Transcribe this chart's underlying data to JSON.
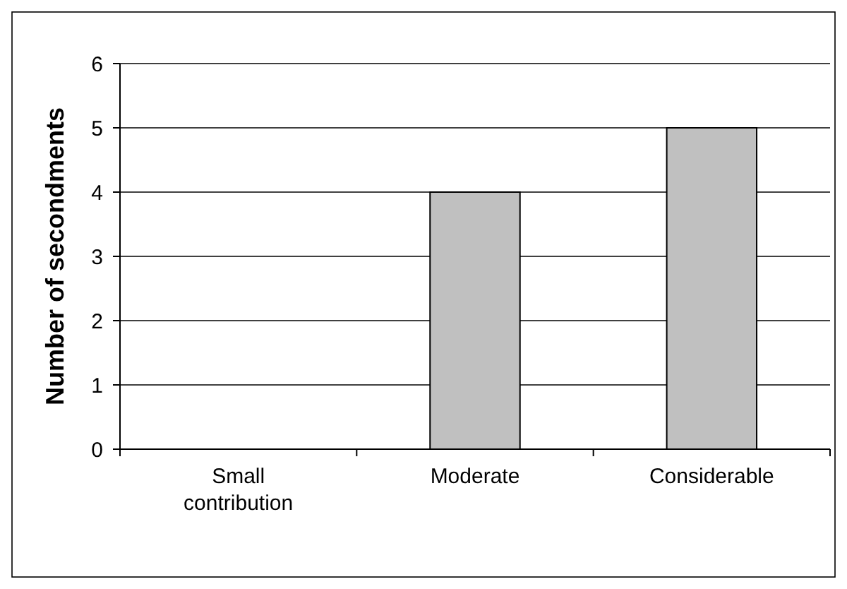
{
  "chart_data": {
    "type": "bar",
    "ylabel": "Number of secondments",
    "categories": [
      "Small contribution",
      "Moderate",
      "Considerable"
    ],
    "values": [
      0,
      4,
      5
    ],
    "color": "#c0c0c0",
    "ylim": [
      0,
      6
    ],
    "yticks": [
      0,
      1,
      2,
      3,
      4,
      5,
      6
    ],
    "grid": "y"
  }
}
